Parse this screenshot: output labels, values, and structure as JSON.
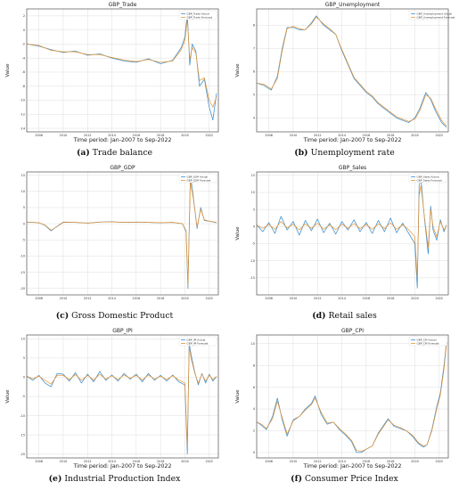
{
  "colors": {
    "actual": "#3b8fd0",
    "forecast": "#e8922c"
  },
  "chart_data": [
    {
      "type": "line",
      "title": "GBP_Trade",
      "xlabel": "Time period: Jan-2007 to Sep-2022",
      "ylabel": "Value",
      "caption_label": "(a)",
      "caption_text": "Trade balance",
      "xlim": [
        2007,
        2022.75
      ],
      "xticks": [
        "2008",
        "2010",
        "2012",
        "2014",
        "2016",
        "2018",
        "2020",
        "2022"
      ],
      "ylim": [
        -14.5,
        3
      ],
      "yticks": [
        "2",
        "0",
        "-2",
        "-4",
        "-6",
        "-8",
        "-10",
        "-12",
        "-14"
      ],
      "legend": [
        "GBP_Trade Actual",
        "GBP_Trade Forecast"
      ],
      "x": [
        2007.0,
        2008.0,
        2009.0,
        2010.0,
        2011.0,
        2012.0,
        2013.0,
        2014.0,
        2015.0,
        2016.0,
        2017.0,
        2018.0,
        2019.0,
        2019.7,
        2020.0,
        2020.2,
        2020.4,
        2020.6,
        2020.9,
        2021.2,
        2021.6,
        2022.0,
        2022.3,
        2022.6
      ],
      "series": [
        {
          "name": "GBP_Trade Actual",
          "values": [
            -2.0,
            -2.3,
            -2.8,
            -3.2,
            -3.0,
            -3.6,
            -3.4,
            -4.0,
            -4.4,
            -4.6,
            -4.1,
            -4.8,
            -4.3,
            -2.5,
            -1.0,
            2.3,
            -5.0,
            -2.0,
            -3.0,
            -8.0,
            -7.0,
            -11.0,
            -12.8,
            -9.0
          ]
        },
        {
          "name": "GBP_Trade Forecast",
          "values": [
            -2.0,
            -2.2,
            -2.9,
            -3.1,
            -3.1,
            -3.5,
            -3.5,
            -3.9,
            -4.3,
            -4.5,
            -4.2,
            -4.6,
            -4.4,
            -2.8,
            -1.5,
            1.5,
            -4.2,
            -2.5,
            -3.3,
            -7.2,
            -6.8,
            -10.0,
            -11.0,
            -9.5
          ]
        }
      ]
    },
    {
      "type": "line",
      "title": "GBP_Unemployment",
      "xlabel": "Time period: Jan-2007 to Sep-2022",
      "ylabel": "Value",
      "caption_label": "(b)",
      "caption_text": "Unemployment rate",
      "xlim": [
        2007,
        2022.75
      ],
      "xticks": [
        "2008",
        "2010",
        "2012",
        "2014",
        "2016",
        "2018",
        "2020",
        "2022"
      ],
      "ylim": [
        3.4,
        8.7
      ],
      "yticks": [
        "8",
        "7",
        "6",
        "5",
        "4"
      ],
      "legend": [
        "GBP_Unemployment Actual",
        "GBP_Unemployment Forecast"
      ],
      "x": [
        2007.0,
        2007.6,
        2008.2,
        2008.7,
        2009.1,
        2009.5,
        2010.0,
        2010.5,
        2011.0,
        2011.5,
        2011.9,
        2012.5,
        2013.0,
        2013.5,
        2014.0,
        2014.5,
        2015.0,
        2015.5,
        2016.0,
        2016.5,
        2017.0,
        2017.5,
        2018.0,
        2018.5,
        2019.0,
        2019.5,
        2020.0,
        2020.4,
        2020.9,
        2021.3,
        2021.7,
        2022.2,
        2022.6
      ],
      "series": [
        {
          "name": "GBP_Unemployment Actual",
          "values": [
            5.5,
            5.4,
            5.2,
            5.8,
            7.0,
            7.9,
            7.9,
            7.8,
            7.8,
            8.1,
            8.4,
            8.0,
            7.8,
            7.6,
            6.9,
            6.3,
            5.7,
            5.4,
            5.1,
            4.9,
            4.6,
            4.4,
            4.2,
            4.0,
            3.9,
            3.8,
            4.0,
            4.4,
            5.1,
            4.8,
            4.3,
            3.8,
            3.6
          ]
        },
        {
          "name": "GBP_Unemployment Forecast",
          "values": [
            5.5,
            5.45,
            5.25,
            5.7,
            6.9,
            7.85,
            7.95,
            7.85,
            7.8,
            8.05,
            8.35,
            8.05,
            7.85,
            7.6,
            6.95,
            6.35,
            5.75,
            5.45,
            5.15,
            4.95,
            4.65,
            4.45,
            4.25,
            4.05,
            3.95,
            3.85,
            3.95,
            4.3,
            5.0,
            4.85,
            4.4,
            3.9,
            3.65
          ]
        }
      ]
    },
    {
      "type": "line",
      "title": "GBP_GDP",
      "xlabel": "",
      "ylabel": "",
      "caption_label": "(c)",
      "caption_text": "Gross Domestic Product",
      "xlim": [
        2007,
        2022.75
      ],
      "xticks": [
        "2008",
        "2010",
        "2012",
        "2014",
        "2016",
        "2018",
        "2020",
        "2022"
      ],
      "ylim": [
        -22,
        16
      ],
      "yticks": [
        "15",
        "10",
        "5",
        "0",
        "-5",
        "-10",
        "-15",
        "-20"
      ],
      "legend": [
        "GBP_GDP Actual",
        "GBP_GDP Forecast"
      ],
      "x": [
        2007.0,
        2008.0,
        2008.5,
        2009.0,
        2009.5,
        2010.0,
        2011.0,
        2012.0,
        2013.0,
        2014.0,
        2015.0,
        2016.0,
        2017.0,
        2018.0,
        2019.0,
        2019.8,
        2020.1,
        2020.25,
        2020.45,
        2020.7,
        2021.0,
        2021.3,
        2021.6,
        2022.0,
        2022.6
      ],
      "series": [
        {
          "name": "GBP_GDP Actual",
          "values": [
            0.5,
            0.3,
            -0.5,
            -2.2,
            -0.8,
            0.5,
            0.4,
            0.2,
            0.5,
            0.6,
            0.4,
            0.5,
            0.4,
            0.3,
            0.4,
            0.0,
            -2.5,
            -20.0,
            15.0,
            8.0,
            -1.5,
            5.0,
            1.0,
            0.8,
            0.3
          ]
        },
        {
          "name": "GBP_GDP Forecast",
          "values": [
            0.5,
            0.3,
            -0.4,
            -2.0,
            -0.9,
            0.4,
            0.4,
            0.2,
            0.5,
            0.6,
            0.4,
            0.5,
            0.4,
            0.3,
            0.4,
            0.0,
            -2.2,
            -19.0,
            13.0,
            7.5,
            -1.0,
            4.5,
            1.2,
            0.8,
            0.4
          ]
        }
      ]
    },
    {
      "type": "line",
      "title": "GBP_Sales",
      "xlabel": "",
      "ylabel": "Value",
      "caption_label": "(d)",
      "caption_text": "Retail sales",
      "xlim": [
        2007,
        2022.75
      ],
      "xticks": [
        "2008",
        "2010",
        "2012",
        "2014",
        "2016",
        "2018",
        "2020",
        "2022"
      ],
      "ylim": [
        -20,
        16
      ],
      "yticks": [
        "15",
        "10",
        "5",
        "0",
        "-5",
        "-10",
        "-15"
      ],
      "legend": [
        "GBP_Sales Actual",
        "GBP_Sales Forecast"
      ],
      "x": [
        2007.0,
        2007.5,
        2008.0,
        2008.5,
        2009.0,
        2009.5,
        2010.0,
        2010.5,
        2011.0,
        2011.5,
        2012.0,
        2012.5,
        2013.0,
        2013.5,
        2014.0,
        2014.5,
        2015.0,
        2015.5,
        2016.0,
        2016.5,
        2017.0,
        2017.5,
        2018.0,
        2018.5,
        2019.0,
        2019.5,
        2020.0,
        2020.2,
        2020.35,
        2020.5,
        2020.8,
        2021.1,
        2021.3,
        2021.5,
        2021.8,
        2022.1,
        2022.4,
        2022.6
      ],
      "series": [
        {
          "name": "GBP_Sales Actual",
          "values": [
            0.5,
            -1.5,
            1.2,
            -2.0,
            3.0,
            -1.0,
            1.5,
            -2.5,
            1.8,
            -1.2,
            2.2,
            -1.8,
            1.0,
            -2.2,
            1.5,
            -1.0,
            2.0,
            -1.5,
            1.2,
            -2.0,
            1.8,
            -1.5,
            2.5,
            -1.8,
            1.0,
            -2.0,
            -5.0,
            -18.0,
            12.0,
            14.0,
            2.0,
            -8.0,
            6.0,
            -1.0,
            -4.0,
            2.0,
            -1.5,
            0.5
          ]
        },
        {
          "name": "GBP_Sales Forecast",
          "values": [
            0.4,
            -0.5,
            0.6,
            -0.8,
            1.5,
            -0.4,
            0.7,
            -1.0,
            0.8,
            -0.5,
            1.0,
            -0.8,
            0.5,
            -0.9,
            0.7,
            -0.5,
            0.9,
            -0.6,
            0.6,
            -0.8,
            0.8,
            -0.6,
            1.1,
            -0.8,
            0.5,
            -0.9,
            -3.0,
            -15.0,
            9.0,
            12.0,
            2.5,
            -6.0,
            5.0,
            0.0,
            -3.0,
            1.5,
            -1.0,
            0.4
          ]
        }
      ]
    },
    {
      "type": "line",
      "title": "GBP_IPI",
      "xlabel": "Time period: Jan-2007 to Sep-2022",
      "ylabel": "Value",
      "caption_label": "(e)",
      "caption_text": "Industrial Production Index",
      "xlim": [
        2007,
        2022.75
      ],
      "xticks": [
        "2008",
        "2010",
        "2012",
        "2014",
        "2016",
        "2018",
        "2020",
        "2022"
      ],
      "ylim": [
        -21,
        11
      ],
      "yticks": [
        "10",
        "5",
        "0",
        "-5",
        "-10",
        "-15",
        "-20"
      ],
      "legend": [
        "GBP_IPI Actual",
        "GBP_IPI Forecast"
      ],
      "x": [
        2007.0,
        2007.5,
        2008.0,
        2008.5,
        2009.0,
        2009.5,
        2010.0,
        2010.5,
        2011.0,
        2011.5,
        2012.0,
        2012.5,
        2013.0,
        2013.5,
        2014.0,
        2014.5,
        2015.0,
        2015.5,
        2016.0,
        2016.5,
        2017.0,
        2017.5,
        2018.0,
        2018.5,
        2019.0,
        2019.5,
        2020.0,
        2020.2,
        2020.35,
        2020.5,
        2020.8,
        2021.1,
        2021.4,
        2021.7,
        2022.0,
        2022.3,
        2022.6
      ],
      "series": [
        {
          "name": "GBP_IPI Actual",
          "values": [
            0.3,
            -0.8,
            0.5,
            -1.5,
            -2.5,
            1.0,
            0.8,
            -1.0,
            1.2,
            -1.5,
            0.8,
            -1.2,
            1.5,
            -0.8,
            0.6,
            -1.0,
            1.0,
            -0.5,
            0.8,
            -1.2,
            1.0,
            -0.8,
            0.5,
            -1.0,
            0.6,
            -1.2,
            -2.0,
            -20.0,
            9.0,
            6.0,
            1.5,
            -2.0,
            1.0,
            -1.5,
            0.8,
            -1.0,
            0.2
          ]
        },
        {
          "name": "GBP_IPI Forecast",
          "values": [
            0.3,
            -0.4,
            0.3,
            -0.8,
            -1.8,
            0.5,
            0.5,
            -0.6,
            0.7,
            -0.8,
            0.5,
            -0.7,
            0.8,
            -0.5,
            0.4,
            -0.6,
            0.6,
            -0.3,
            0.5,
            -0.7,
            0.6,
            -0.5,
            0.3,
            -0.6,
            0.4,
            -0.7,
            -1.5,
            -18.0,
            8.0,
            5.0,
            1.2,
            -1.5,
            0.8,
            -1.0,
            0.5,
            -0.6,
            0.2
          ]
        }
      ]
    },
    {
      "type": "line",
      "title": "GBP_CPI",
      "xlabel": "Time period: Jan-2007 to Sep-2022",
      "ylabel": "Value",
      "caption_label": "(f)",
      "caption_text": "Consumer Price Index",
      "xlim": [
        2007,
        2022.75
      ],
      "xticks": [
        "2008",
        "2010",
        "2012",
        "2014",
        "2016",
        "2018",
        "2020",
        "2022"
      ],
      "ylim": [
        -0.5,
        10.8
      ],
      "yticks": [
        "10",
        "8",
        "6",
        "4",
        "2",
        "0"
      ],
      "legend": [
        "GBP_CPI Actual",
        "GBP_CPI Forecast"
      ],
      "x": [
        2007.0,
        2007.4,
        2007.8,
        2008.3,
        2008.7,
        2009.1,
        2009.5,
        2010.0,
        2010.5,
        2011.0,
        2011.5,
        2011.8,
        2012.3,
        2012.8,
        2013.3,
        2013.8,
        2014.3,
        2014.8,
        2015.2,
        2015.6,
        2016.0,
        2016.5,
        2017.0,
        2017.5,
        2017.8,
        2018.3,
        2018.8,
        2019.3,
        2019.8,
        2020.3,
        2020.7,
        2021.0,
        2021.4,
        2021.8,
        2022.1,
        2022.4,
        2022.6
      ],
      "series": [
        {
          "name": "GBP_CPI Actual",
          "values": [
            2.8,
            2.5,
            2.1,
            3.3,
            5.0,
            3.0,
            1.5,
            3.0,
            3.3,
            4.0,
            4.5,
            5.2,
            3.5,
            2.6,
            2.8,
            2.1,
            1.6,
            1.0,
            0.0,
            0.0,
            0.3,
            0.6,
            1.8,
            2.6,
            3.1,
            2.4,
            2.2,
            2.0,
            1.5,
            0.8,
            0.5,
            0.7,
            2.1,
            4.2,
            5.5,
            8.0,
            10.1
          ]
        },
        {
          "name": "GBP_CPI Forecast",
          "values": [
            2.8,
            2.6,
            2.2,
            3.1,
            4.7,
            3.2,
            1.7,
            2.9,
            3.3,
            3.9,
            4.4,
            5.0,
            3.7,
            2.7,
            2.8,
            2.2,
            1.7,
            1.1,
            0.2,
            0.1,
            0.3,
            0.6,
            1.7,
            2.5,
            3.0,
            2.5,
            2.3,
            2.0,
            1.6,
            0.9,
            0.6,
            0.7,
            2.0,
            4.0,
            5.3,
            7.7,
            9.9
          ]
        }
      ]
    }
  ]
}
